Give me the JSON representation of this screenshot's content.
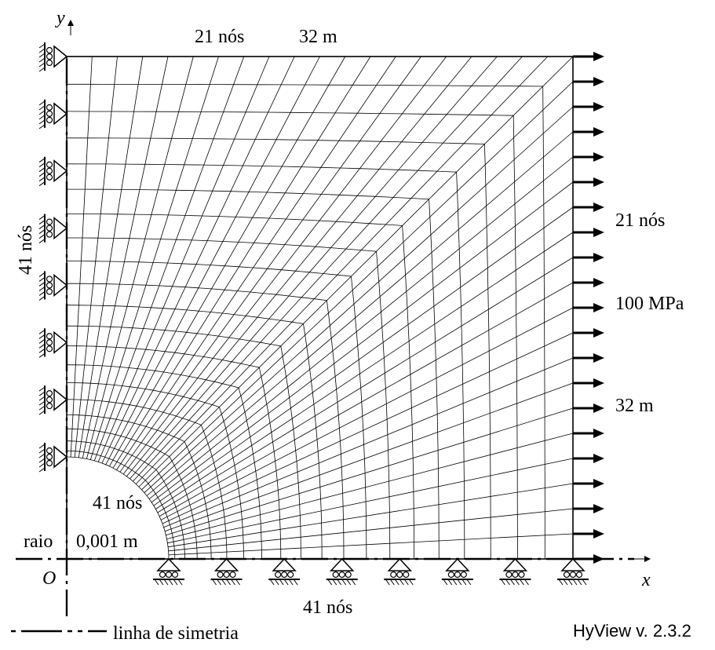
{
  "labels": {
    "top_nodes": "21 nós",
    "top_length": "32 m",
    "left_nodes": "41 nós",
    "right_nodes": "21 nós",
    "right_load": "100 MPa",
    "right_length": "32 m",
    "hole_nodes": "41 nós",
    "radius_label": "raio",
    "radius_value": "0,001 m",
    "bottom_nodes": "41 nós",
    "origin": "O",
    "axis_x": "x",
    "axis_y": "y",
    "legend_symmetry": "linha de simetria",
    "software": "HyView v. 2.3.2"
  },
  "mesh": {
    "radial_divisions": 20,
    "arc_divisions": 40
  },
  "supports": {
    "left_roller_count": 8,
    "bottom_roller_count": 8
  },
  "load": {
    "arrow_count": 21
  }
}
